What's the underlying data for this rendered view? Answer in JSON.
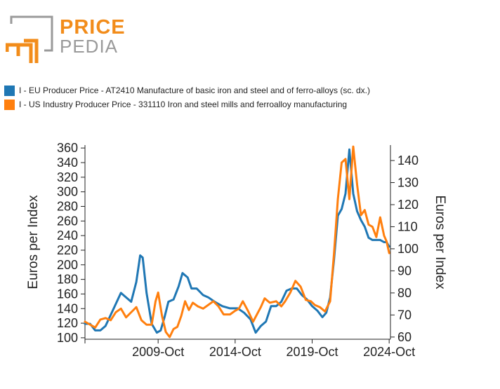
{
  "logo": {
    "word1": "PRICE",
    "word2": "PEDIA"
  },
  "legend": [
    {
      "label": "I - EU Producer Price - AT2410 Manufacture of basic iron and steel and of ferro-alloys (sc. dx.)",
      "color": "#1f77b4"
    },
    {
      "label": "I - US Industry Producer Price - 331110 Iron and steel mills and ferroalloy manufacturing",
      "color": "#ff7f0e"
    }
  ],
  "chart_data": {
    "type": "line",
    "title": "",
    "xlabel": "",
    "ylabel_left": "Euros per Index",
    "ylabel_right": "Euros per Index",
    "ylim_left": [
      98,
      364
    ],
    "ylim_right": [
      59,
      147
    ],
    "yticks_left": [
      100,
      120,
      140,
      160,
      180,
      200,
      220,
      240,
      260,
      280,
      300,
      320,
      340,
      360
    ],
    "yticks_right": [
      60,
      70,
      80,
      90,
      100,
      110,
      120,
      130,
      140
    ],
    "xlim": [
      "2005-01",
      "2024-11"
    ],
    "xticks": [
      {
        "date": "2009-10",
        "label": "2009-Oct"
      },
      {
        "date": "2014-10",
        "label": "2014-Oct"
      },
      {
        "date": "2019-10",
        "label": "2019-Oct"
      },
      {
        "date": "2024-10",
        "label": "2024-Oct"
      }
    ],
    "grid": false,
    "legend_position": "top-left",
    "series": [
      {
        "name": "I - EU Producer Price - AT2410 Manufacture of basic iron and steel and of ferro-alloys (sc. dx.)",
        "axis": "right",
        "color": "#1f77b4",
        "points": [
          [
            "2005-01",
            66
          ],
          [
            "2005-05",
            66
          ],
          [
            "2005-09",
            63
          ],
          [
            "2006-01",
            63
          ],
          [
            "2006-05",
            65
          ],
          [
            "2006-09",
            70
          ],
          [
            "2007-01",
            75
          ],
          [
            "2007-05",
            80
          ],
          [
            "2007-09",
            78
          ],
          [
            "2008-01",
            76
          ],
          [
            "2008-05",
            85
          ],
          [
            "2008-08",
            97
          ],
          [
            "2008-10",
            96
          ],
          [
            "2009-01",
            80
          ],
          [
            "2009-05",
            66
          ],
          [
            "2009-09",
            62
          ],
          [
            "2009-12",
            63
          ],
          [
            "2010-03",
            69
          ],
          [
            "2010-06",
            76
          ],
          [
            "2010-10",
            77
          ],
          [
            "2011-02",
            83
          ],
          [
            "2011-05",
            89
          ],
          [
            "2011-09",
            87
          ],
          [
            "2011-12",
            82
          ],
          [
            "2012-04",
            82
          ],
          [
            "2012-09",
            79
          ],
          [
            "2013-01",
            78
          ],
          [
            "2013-06",
            76
          ],
          [
            "2013-12",
            74
          ],
          [
            "2014-06",
            73
          ],
          [
            "2014-12",
            73
          ],
          [
            "2015-05",
            71
          ],
          [
            "2015-10",
            68
          ],
          [
            "2016-02",
            62
          ],
          [
            "2016-06",
            65
          ],
          [
            "2016-10",
            67
          ],
          [
            "2017-02",
            74
          ],
          [
            "2017-06",
            74
          ],
          [
            "2017-10",
            76
          ],
          [
            "2018-02",
            81
          ],
          [
            "2018-06",
            82
          ],
          [
            "2018-10",
            82
          ],
          [
            "2019-02",
            79
          ],
          [
            "2019-06",
            77
          ],
          [
            "2019-10",
            74
          ],
          [
            "2020-02",
            72
          ],
          [
            "2020-06",
            69
          ],
          [
            "2020-09",
            71
          ],
          [
            "2020-12",
            78
          ],
          [
            "2021-03",
            95
          ],
          [
            "2021-06",
            115
          ],
          [
            "2021-09",
            118
          ],
          [
            "2021-12",
            125
          ],
          [
            "2022-03",
            145
          ],
          [
            "2022-06",
            125
          ],
          [
            "2022-09",
            117
          ],
          [
            "2022-12",
            113
          ],
          [
            "2023-03",
            110
          ],
          [
            "2023-06",
            105
          ],
          [
            "2023-09",
            104
          ],
          [
            "2023-12",
            104
          ],
          [
            "2024-03",
            104
          ],
          [
            "2024-06",
            103
          ],
          [
            "2024-08",
            103
          ],
          [
            "2024-10",
            101
          ]
        ]
      },
      {
        "name": "I - US Industry Producer Price - 331110 Iron and steel mills and ferroalloy manufacturing",
        "axis": "left",
        "color": "#ff7f0e",
        "points": [
          [
            "2005-01",
            122
          ],
          [
            "2005-05",
            118
          ],
          [
            "2005-09",
            114
          ],
          [
            "2006-01",
            125
          ],
          [
            "2006-05",
            127
          ],
          [
            "2006-09",
            124
          ],
          [
            "2007-01",
            135
          ],
          [
            "2007-05",
            140
          ],
          [
            "2007-09",
            128
          ],
          [
            "2008-01",
            135
          ],
          [
            "2008-05",
            142
          ],
          [
            "2008-09",
            124
          ],
          [
            "2009-01",
            118
          ],
          [
            "2009-05",
            118
          ],
          [
            "2009-08",
            150
          ],
          [
            "2009-10",
            162
          ],
          [
            "2010-01",
            130
          ],
          [
            "2010-04",
            108
          ],
          [
            "2010-07",
            101
          ],
          [
            "2010-10",
            112
          ],
          [
            "2011-01",
            115
          ],
          [
            "2011-04",
            130
          ],
          [
            "2011-07",
            150
          ],
          [
            "2011-10",
            138
          ],
          [
            "2012-01",
            148
          ],
          [
            "2012-05",
            143
          ],
          [
            "2012-09",
            140
          ],
          [
            "2013-01",
            145
          ],
          [
            "2013-05",
            150
          ],
          [
            "2013-09",
            143
          ],
          [
            "2014-01",
            132
          ],
          [
            "2014-06",
            132
          ],
          [
            "2014-10",
            137
          ],
          [
            "2015-01",
            140
          ],
          [
            "2015-04",
            150
          ],
          [
            "2015-08",
            137
          ],
          [
            "2015-12",
            122
          ],
          [
            "2016-03",
            132
          ],
          [
            "2016-06",
            142
          ],
          [
            "2016-09",
            154
          ],
          [
            "2017-01",
            148
          ],
          [
            "2017-06",
            150
          ],
          [
            "2017-10",
            143
          ],
          [
            "2018-01",
            150
          ],
          [
            "2018-05",
            162
          ],
          [
            "2018-09",
            178
          ],
          [
            "2019-01",
            170
          ],
          [
            "2019-05",
            152
          ],
          [
            "2019-09",
            150
          ],
          [
            "2019-12",
            145
          ],
          [
            "2020-04",
            142
          ],
          [
            "2020-08",
            136
          ],
          [
            "2020-12",
            150
          ],
          [
            "2021-03",
            215
          ],
          [
            "2021-06",
            290
          ],
          [
            "2021-09",
            340
          ],
          [
            "2021-12",
            345
          ],
          [
            "2022-03",
            290
          ],
          [
            "2022-06",
            362
          ],
          [
            "2022-09",
            310
          ],
          [
            "2022-12",
            268
          ],
          [
            "2023-03",
            275
          ],
          [
            "2023-06",
            255
          ],
          [
            "2023-09",
            252
          ],
          [
            "2023-12",
            238
          ],
          [
            "2024-03",
            265
          ],
          [
            "2024-06",
            240
          ],
          [
            "2024-08",
            232
          ],
          [
            "2024-10",
            216
          ]
        ]
      }
    ]
  }
}
